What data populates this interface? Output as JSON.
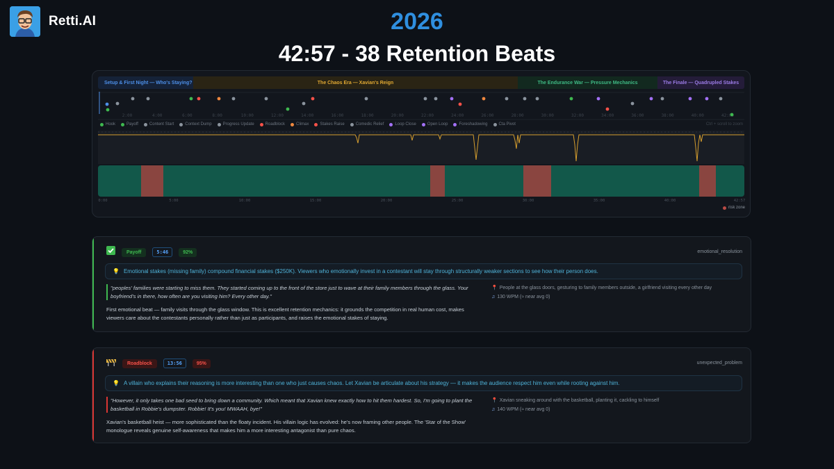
{
  "brand": {
    "name": "Retti.AI",
    "avatar_icon": "cartoon-avatar-icon"
  },
  "header": {
    "year": "2026",
    "title": "42:57 - 38 Retention Beats"
  },
  "timeline": {
    "acts": [
      "Setup & First Night — Who's Staying?",
      "The Chaos Era — Xavian's Reign",
      "The Endurance War — Pressure Mechanics",
      "The Finale — Quadrupled Stakes"
    ],
    "minute_ticks": [
      "2:00",
      "4:00",
      "6:00",
      "8:00",
      "10:00",
      "12:00",
      "14:00",
      "16:00",
      "18:00",
      "20:00",
      "22:00",
      "24:00",
      "26:00",
      "28:00",
      "30:00",
      "32:00",
      "34:00",
      "36:00",
      "38:00",
      "40:00",
      "42:00"
    ],
    "legend": [
      {
        "label": "Hook",
        "color": "#3fb950"
      },
      {
        "label": "Payoff",
        "color": "#3fb950"
      },
      {
        "label": "Content Start",
        "color": "#8b949e"
      },
      {
        "label": "Context Dump",
        "color": "#8b949e"
      },
      {
        "label": "Progress Update",
        "color": "#8b949e"
      },
      {
        "label": "Roadblock",
        "color": "#f85149"
      },
      {
        "label": "Climax",
        "color": "#f0883e"
      },
      {
        "label": "Stakes Raise",
        "color": "#f85149"
      },
      {
        "label": "Comedic Relief",
        "color": "#8b949e"
      },
      {
        "label": "Loop Close",
        "color": "#a371f7"
      },
      {
        "label": "Open Loop",
        "color": "#a371f7"
      },
      {
        "label": "Foreshadowing",
        "color": "#a371f7"
      },
      {
        "label": "Cta Pivot",
        "color": "#8b949e"
      }
    ],
    "hint": "Ctrl + scroll to zoom",
    "five_minute_ticks": [
      "0:00",
      "5:00",
      "10:00",
      "15:00",
      "20:00",
      "25:00",
      "30:00",
      "35:00",
      "40:00",
      "42:57"
    ],
    "risk_label": "risk zone",
    "colors": {
      "safe": "#12584a",
      "risk": "#8a4540",
      "line": "#d69e2e"
    }
  },
  "cards": [
    {
      "tag": "Payoff",
      "time": "5:46",
      "score": "92%",
      "category": "emotional_resolution",
      "insight": "Emotional stakes (missing family) compound financial stakes ($250K). Viewers who emotionally invest in a contestant will stay through structurally weaker sections to see how their person does.",
      "quote": "\"peoples' families were starting to miss them. They started coming up to the front of the store just to wave at their family members through the glass. Your boyfriend's in there, how often are you visiting him? Every other day.\"",
      "description": "First emotional beat — family visits through the glass window. This is excellent retention mechanics: it grounds the competition in real human cost, makes viewers care about the contestants personally rather than just as participants, and raises the emotional stakes of staying.",
      "visual": "People at the glass doors, gesturing to family members outside, a girlfriend visiting every other day",
      "wpm": "130 WPM (≈ near avg 0)",
      "accent": "#3fb950"
    },
    {
      "tag": "Roadblock",
      "time": "13:56",
      "score": "95%",
      "category": "unexpected_problem",
      "insight": "A villain who explains their reasoning is more interesting than one who just causes chaos. Let Xavian be articulate about his strategy — it makes the audience respect him even while rooting against him.",
      "quote": "\"However, it only takes one bad seed to bring down a community. Which meant that Xavian knew exactly how to hit them hardest. So, I'm going to plant the basketball in Robbie's dumpster. Robbie! It's you! MWAAH, bye!\"",
      "description": "Xavian's basketball heist — more sophisticated than the floaty incident. His villain logic has evolved: he's now framing other people. The 'Star of the Show' monologue reveals genuine self-awareness that makes him a more interesting antagonist than pure chaos.",
      "visual": "Xavian sneaking around with the basketball, planting it, cackling to himself",
      "wpm": "140 WPM (≈ near avg 0)",
      "accent": "#da3633"
    }
  ]
}
